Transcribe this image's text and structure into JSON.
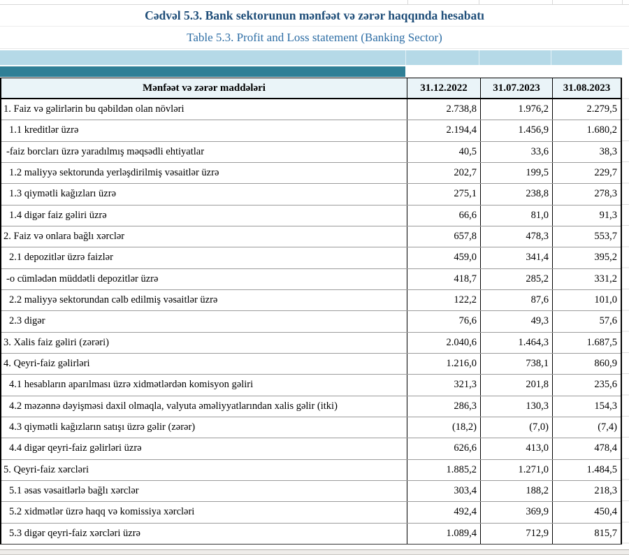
{
  "title": "Cədvəl 5.3. Bank sektorunun mənfəət və zərər haqqında hesabatı",
  "subtitle": "Table 5.3. Profit and Loss statement (Banking Sector)",
  "table": {
    "header": {
      "label": "Mənfəət və zərər maddələri",
      "columns": [
        "31.12.2022",
        "31.07.2023",
        "31.08.2023"
      ]
    },
    "rows": [
      {
        "label": "1. Faiz və gəlirlərin bu qəbildən olan növləri",
        "indent": 0,
        "values": [
          "2.738,8",
          "1.976,2",
          "2.279,5"
        ]
      },
      {
        "label": "1.1 kreditlər üzrə",
        "indent": 2,
        "values": [
          "2.194,4",
          "1.456,9",
          "1.680,2"
        ]
      },
      {
        "label": "-faiz borcları üzrə yaradılmış məqsədli ehtiyatlar",
        "indent": 1,
        "values": [
          "40,5",
          "33,6",
          "38,3"
        ]
      },
      {
        "label": "1.2 maliyyə sektorunda yerləşdirilmiş vəsaitlər üzrə",
        "indent": 2,
        "values": [
          "202,7",
          "199,5",
          "229,7"
        ]
      },
      {
        "label": "1.3 qiymətli kağızları üzrə",
        "indent": 2,
        "values": [
          "275,1",
          "238,8",
          "278,3"
        ]
      },
      {
        "label": "1.4 digər faiz gəliri üzrə",
        "indent": 2,
        "values": [
          "66,6",
          "81,0",
          "91,3"
        ]
      },
      {
        "label": "2. Faiz və onlara bağlı xərclər",
        "indent": 0,
        "values": [
          "657,8",
          "478,3",
          "553,7"
        ]
      },
      {
        "label": "2.1 depozitlər üzrə faizlər",
        "indent": 2,
        "values": [
          "459,0",
          "341,4",
          "395,2"
        ]
      },
      {
        "label": "-o cümlədən müddətli depozitlər üzrə",
        "indent": 1,
        "values": [
          "418,7",
          "285,2",
          "331,2"
        ]
      },
      {
        "label": "2.2 maliyyə sektorundan cəlb edilmiş vəsaitlər üzrə",
        "indent": 2,
        "values": [
          "122,2",
          "87,6",
          "101,0"
        ]
      },
      {
        "label": "2.3 digər",
        "indent": 2,
        "values": [
          "76,6",
          "49,3",
          "57,6"
        ]
      },
      {
        "label": "3. Xalis faiz gəliri (zərəri)",
        "indent": 0,
        "values": [
          "2.040,6",
          "1.464,3",
          "1.687,5"
        ]
      },
      {
        "label": "4. Qeyri-faiz gəlirləri",
        "indent": 0,
        "values": [
          "1.216,0",
          "738,1",
          "860,9"
        ]
      },
      {
        "label": "4.1 hesabların aparılması üzrə xidmətlərdən komisyon gəliri",
        "indent": 2,
        "values": [
          "321,3",
          "201,8",
          "235,6"
        ]
      },
      {
        "label": "4.2 məzənnə dəyişməsi daxil olmaqla, valyuta əməliyyatlarından xalis gəlir (itki)",
        "indent": 2,
        "values": [
          "286,3",
          "130,3",
          "154,3"
        ]
      },
      {
        "label": "4.3 qiymətli kağızların satışı üzrə gəlir (zərər)",
        "indent": 2,
        "values": [
          "(18,2)",
          "(7,0)",
          "(7,4)"
        ]
      },
      {
        "label": "4.4 digər qeyri-faiz gəlirləri üzrə",
        "indent": 2,
        "values": [
          "626,6",
          "413,0",
          "478,4"
        ]
      },
      {
        "label": "5. Qeyri-faiz xərcləri",
        "indent": 0,
        "values": [
          "1.885,2",
          "1.271,0",
          "1.484,5"
        ]
      },
      {
        "label": "5.1 əsas vəsaitlərlə bağlı xərclər",
        "indent": 2,
        "values": [
          "303,4",
          "188,2",
          "218,3"
        ]
      },
      {
        "label": "5.2 xidmətlər üzrə haqq və komissiya xərcləri",
        "indent": 2,
        "values": [
          "492,4",
          "369,9",
          "450,4"
        ]
      },
      {
        "label": "5.3 digər qeyri-faiz xərcləri üzrə",
        "indent": 2,
        "values": [
          "1.089,4",
          "712,9",
          "815,7"
        ]
      }
    ]
  },
  "colors": {
    "title_blue": "#1f4e79",
    "subtitle_blue": "#2e6ea5",
    "band_light_blue": "#b5d9e7",
    "band_teal": "#2f7f96",
    "header_bg": "#eaf4f8",
    "grid_black": "#000000",
    "row_line_gray": "#9b9b9b",
    "bottom_bar": "#efedea"
  }
}
